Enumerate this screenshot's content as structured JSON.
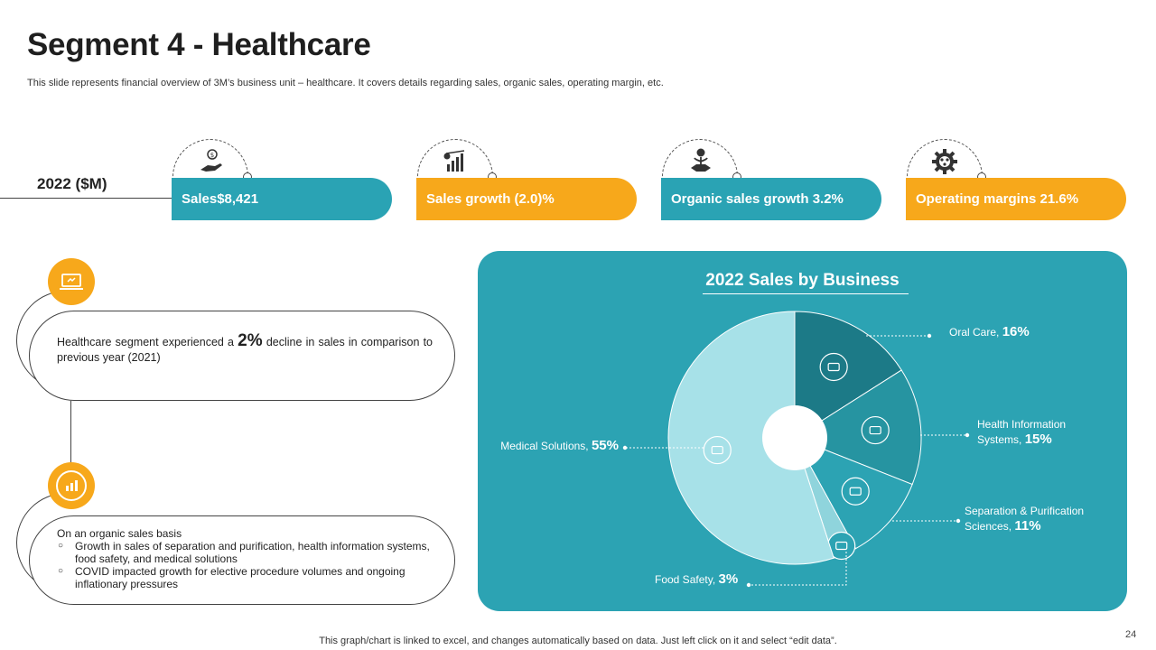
{
  "slide": {
    "title": "Segment 4 - Healthcare",
    "subtitle": "This slide represents financial overview of 3M’s business unit – healthcare. It covers details regarding sales, organic sales, operating margin, etc.",
    "year_label": "2022 ($M)",
    "footer": "This graph/chart is linked to excel, and changes automatically based on data. Just left click on it and select “edit data”.",
    "page_number": "24"
  },
  "kpis": [
    {
      "label": "Sales$8,421",
      "icon": "hand-money-icon",
      "color": "#2aa3b4"
    },
    {
      "label": "Sales growth (2.0)%",
      "icon": "growth-chart-icon",
      "color": "#f7a81b"
    },
    {
      "label": "Organic sales growth 3.2%",
      "icon": "hand-plant-icon",
      "color": "#2aa3b4"
    },
    {
      "label": "Operating margins 21.6%",
      "icon": "gear-icon",
      "color": "#f7a81b"
    }
  ],
  "notes": {
    "note1": {
      "pre": "Healthcare segment experienced a ",
      "highlight": "2%",
      "post": " decline in sales in comparison to previous year (2021)"
    },
    "note2": {
      "heading": "On an organic sales basis",
      "bullets": [
        "Growth in sales of separation and purification, health information systems, food safety, and medical solutions",
        "COVID impacted growth for elective procedure volumes and ongoing inflationary pressures"
      ]
    }
  },
  "chart_data": {
    "type": "pie",
    "title": "2022 Sales by Business",
    "slices": [
      {
        "name": "Oral Care",
        "value": 16,
        "label": "16%",
        "color": "#1c7a87",
        "icon": "tooth-icon"
      },
      {
        "name": "Health Information Systems",
        "value": 15,
        "label": "15%",
        "color": "#2694a1",
        "icon": "computer-icon"
      },
      {
        "name": "Separation & Purification Sciences",
        "value": 11,
        "label": "11%",
        "color": "#2ca3b3",
        "icon": "science-icon"
      },
      {
        "name": "Food Safety",
        "value": 3,
        "label": "3%",
        "color": "#8fd4dc",
        "icon": "food-icon"
      },
      {
        "name": "Medical Solutions",
        "value": 55,
        "label": "55%",
        "color": "#a7e1e8",
        "icon": "medical-icon"
      }
    ],
    "legend": "callouts",
    "colors": {
      "panel": "#2ca3b3",
      "accent_orange": "#f7a81b",
      "accent_teal": "#2aa3b4"
    }
  }
}
